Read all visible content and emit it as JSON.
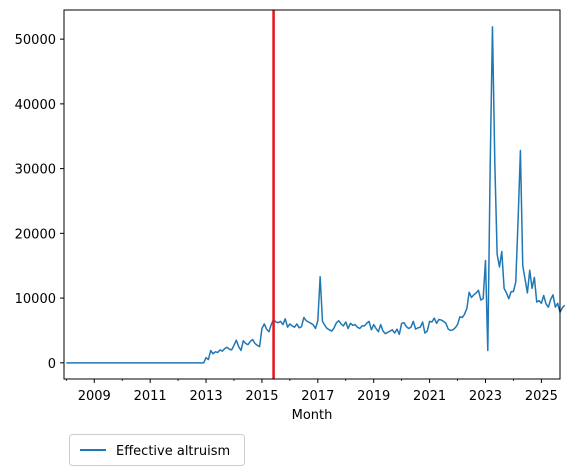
{
  "chart_data": {
    "type": "line",
    "xlabel": "Month",
    "ylabel": "",
    "ylim": [
      -2500,
      54500
    ],
    "xlim": [
      "2007-12",
      "2025-09"
    ],
    "x_ticks": [
      "2009",
      "2011",
      "2013",
      "2015",
      "2017",
      "2019",
      "2021",
      "2023",
      "2025"
    ],
    "y_ticks": [
      0,
      10000,
      20000,
      30000,
      40000,
      50000
    ],
    "y_tick_labels": [
      "0",
      "10000",
      "20000",
      "30000",
      "40000",
      "50000"
    ],
    "grid": false,
    "legend_position": "below-left",
    "vline": {
      "x": "2015-06",
      "color": "#e8141b"
    },
    "series": [
      {
        "name": "Effective altruism",
        "color": "#1f77b4",
        "points": [
          [
            "2008-01",
            0
          ],
          [
            "2008-06",
            0
          ],
          [
            "2009-01",
            0
          ],
          [
            "2009-06",
            0
          ],
          [
            "2010-01",
            0
          ],
          [
            "2010-06",
            0
          ],
          [
            "2011-01",
            0
          ],
          [
            "2011-06",
            0
          ],
          [
            "2012-01",
            0
          ],
          [
            "2012-06",
            0
          ],
          [
            "2012-10",
            0
          ],
          [
            "2012-12",
            0
          ],
          [
            "2013-01",
            800
          ],
          [
            "2013-02",
            500
          ],
          [
            "2013-03",
            1900
          ],
          [
            "2013-04",
            1400
          ],
          [
            "2013-05",
            1700
          ],
          [
            "2013-06",
            1600
          ],
          [
            "2013-07",
            2000
          ],
          [
            "2013-08",
            1800
          ],
          [
            "2013-09",
            2200
          ],
          [
            "2013-10",
            2400
          ],
          [
            "2013-11",
            2100
          ],
          [
            "2013-12",
            2000
          ],
          [
            "2014-01",
            2700
          ],
          [
            "2014-02",
            3500
          ],
          [
            "2014-03",
            2500
          ],
          [
            "2014-04",
            1900
          ],
          [
            "2014-05",
            3400
          ],
          [
            "2014-06",
            3000
          ],
          [
            "2014-07",
            2800
          ],
          [
            "2014-08",
            3300
          ],
          [
            "2014-09",
            3600
          ],
          [
            "2014-10",
            3000
          ],
          [
            "2014-11",
            2700
          ],
          [
            "2014-12",
            2500
          ],
          [
            "2015-01",
            5300
          ],
          [
            "2015-02",
            6000
          ],
          [
            "2015-03",
            5200
          ],
          [
            "2015-04",
            4800
          ],
          [
            "2015-05",
            5900
          ],
          [
            "2015-06",
            6700
          ],
          [
            "2015-07",
            6300
          ],
          [
            "2015-08",
            6200
          ],
          [
            "2015-09",
            6400
          ],
          [
            "2015-10",
            5900
          ],
          [
            "2015-11",
            6800
          ],
          [
            "2015-12",
            5500
          ],
          [
            "2016-01",
            6000
          ],
          [
            "2016-02",
            5700
          ],
          [
            "2016-03",
            5500
          ],
          [
            "2016-04",
            6000
          ],
          [
            "2016-05",
            5400
          ],
          [
            "2016-06",
            5600
          ],
          [
            "2016-07",
            7000
          ],
          [
            "2016-08",
            6500
          ],
          [
            "2016-09",
            6300
          ],
          [
            "2016-10",
            6100
          ],
          [
            "2016-11",
            5900
          ],
          [
            "2016-12",
            5300
          ],
          [
            "2017-01",
            6500
          ],
          [
            "2017-02",
            13300
          ],
          [
            "2017-03",
            6400
          ],
          [
            "2017-04",
            5800
          ],
          [
            "2017-05",
            5300
          ],
          [
            "2017-06",
            5100
          ],
          [
            "2017-07",
            4900
          ],
          [
            "2017-08",
            5400
          ],
          [
            "2017-09",
            6200
          ],
          [
            "2017-10",
            6500
          ],
          [
            "2017-11",
            6000
          ],
          [
            "2017-12",
            5700
          ],
          [
            "2018-01",
            6300
          ],
          [
            "2018-02",
            5300
          ],
          [
            "2018-03",
            6100
          ],
          [
            "2018-04",
            5800
          ],
          [
            "2018-05",
            5900
          ],
          [
            "2018-06",
            5500
          ],
          [
            "2018-07",
            5300
          ],
          [
            "2018-08",
            5700
          ],
          [
            "2018-09",
            5700
          ],
          [
            "2018-10",
            6100
          ],
          [
            "2018-11",
            6400
          ],
          [
            "2018-12",
            5100
          ],
          [
            "2019-01",
            5900
          ],
          [
            "2019-02",
            5300
          ],
          [
            "2019-03",
            4800
          ],
          [
            "2019-04",
            5900
          ],
          [
            "2019-05",
            4900
          ],
          [
            "2019-06",
            4500
          ],
          [
            "2019-07",
            4700
          ],
          [
            "2019-08",
            4900
          ],
          [
            "2019-09",
            5100
          ],
          [
            "2019-10",
            4600
          ],
          [
            "2019-11",
            5200
          ],
          [
            "2019-12",
            4400
          ],
          [
            "2020-01",
            6100
          ],
          [
            "2020-02",
            6200
          ],
          [
            "2020-03",
            5600
          ],
          [
            "2020-04",
            5300
          ],
          [
            "2020-05",
            5500
          ],
          [
            "2020-06",
            6400
          ],
          [
            "2020-07",
            5200
          ],
          [
            "2020-08",
            5400
          ],
          [
            "2020-09",
            5500
          ],
          [
            "2020-10",
            6300
          ],
          [
            "2020-11",
            4600
          ],
          [
            "2020-12",
            4900
          ],
          [
            "2021-01",
            6400
          ],
          [
            "2021-02",
            6300
          ],
          [
            "2021-03",
            6900
          ],
          [
            "2021-04",
            6100
          ],
          [
            "2021-05",
            6700
          ],
          [
            "2021-06",
            6600
          ],
          [
            "2021-07",
            6400
          ],
          [
            "2021-08",
            6100
          ],
          [
            "2021-09",
            5200
          ],
          [
            "2021-10",
            5000
          ],
          [
            "2021-11",
            5100
          ],
          [
            "2021-12",
            5400
          ],
          [
            "2022-01",
            5900
          ],
          [
            "2022-02",
            7100
          ],
          [
            "2022-03",
            7000
          ],
          [
            "2022-04",
            7500
          ],
          [
            "2022-05",
            8400
          ],
          [
            "2022-06",
            10900
          ],
          [
            "2022-07",
            10100
          ],
          [
            "2022-08",
            10500
          ],
          [
            "2022-09",
            10800
          ],
          [
            "2022-10",
            11200
          ],
          [
            "2022-11",
            9700
          ],
          [
            "2022-12",
            9900
          ],
          [
            "2023-01",
            15800
          ],
          [
            "2023-02",
            1900
          ],
          [
            "2023-03",
            30000
          ],
          [
            "2023-04",
            51900
          ],
          [
            "2023-05",
            31000
          ],
          [
            "2023-06",
            16800
          ],
          [
            "2023-07",
            14800
          ],
          [
            "2023-08",
            17200
          ],
          [
            "2023-09",
            11500
          ],
          [
            "2023-10",
            10800
          ],
          [
            "2023-11",
            9900
          ],
          [
            "2023-12",
            11000
          ],
          [
            "2024-01",
            11000
          ],
          [
            "2024-02",
            12500
          ],
          [
            "2024-03",
            22000
          ],
          [
            "2024-04",
            32800
          ],
          [
            "2024-05",
            15000
          ],
          [
            "2024-06",
            12900
          ],
          [
            "2024-07",
            10800
          ],
          [
            "2024-08",
            14300
          ],
          [
            "2024-09",
            11500
          ],
          [
            "2024-10",
            13200
          ],
          [
            "2024-11",
            9400
          ],
          [
            "2024-12",
            9600
          ],
          [
            "2025-01",
            9200
          ],
          [
            "2025-02",
            10400
          ],
          [
            "2025-03",
            9100
          ],
          [
            "2025-04",
            8600
          ],
          [
            "2025-05",
            9800
          ],
          [
            "2025-06",
            10500
          ],
          [
            "2025-07",
            8600
          ],
          [
            "2025-08",
            9200
          ],
          [
            "2025-09",
            7800
          ],
          [
            "2025-10",
            8500
          ],
          [
            "2025-11",
            8900
          ]
        ]
      }
    ]
  }
}
